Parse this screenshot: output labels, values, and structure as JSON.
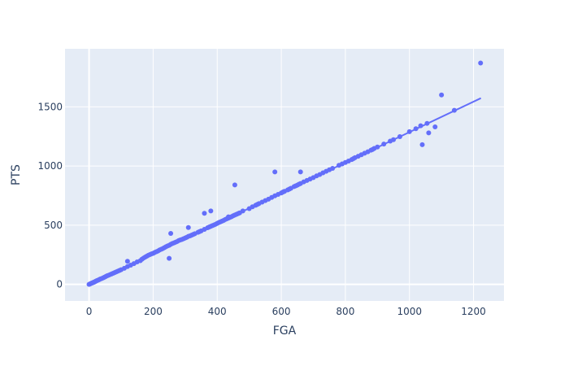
{
  "chart_data": {
    "type": "scatter",
    "title": "",
    "xlabel": "FGA",
    "ylabel": "PTS",
    "xlim": [
      -75,
      1295
    ],
    "ylim": [
      -140,
      1990
    ],
    "x_ticks": [
      0,
      200,
      400,
      600,
      800,
      1000,
      1200
    ],
    "y_ticks": [
      0,
      500,
      1000,
      1500
    ],
    "x_tick_labels": [
      "0",
      "200",
      "400",
      "600",
      "800",
      "1000",
      "1200"
    ],
    "y_tick_labels": [
      "0",
      "500",
      "1000",
      "1500"
    ],
    "grid": true,
    "legend": "none",
    "colors": {
      "plot_bg": "#e5ecf6",
      "grid": "#ffffff",
      "marker": "#636efa",
      "trendline": "#636efa",
      "text": "#2a3f5f"
    },
    "trendline": {
      "x": [
        0,
        1223
      ],
      "y": [
        0,
        1573
      ]
    },
    "series": [
      {
        "x": [
          0,
          2,
          4,
          6,
          8,
          10,
          12,
          14,
          16,
          18,
          20,
          22,
          24,
          27,
          30,
          33,
          36,
          40,
          44,
          48,
          52,
          56,
          60,
          65,
          70,
          75,
          80,
          85,
          90,
          95,
          100,
          110,
          120,
          130,
          140,
          150,
          160,
          165,
          170,
          175,
          180,
          185,
          190,
          195,
          200,
          205,
          210,
          215,
          220,
          225,
          230,
          235,
          240,
          245,
          250,
          255,
          260,
          265,
          270,
          275,
          280,
          285,
          290,
          295,
          300,
          305,
          310,
          315,
          320,
          325,
          330,
          340,
          345,
          350,
          360,
          370,
          375,
          380,
          385,
          390,
          395,
          400,
          405,
          410,
          415,
          420,
          425,
          430,
          435,
          440,
          445,
          450,
          455,
          460,
          465,
          470,
          480,
          500,
          510,
          520,
          525,
          530,
          540,
          550,
          560,
          570,
          580,
          590,
          600,
          605,
          610,
          620,
          625,
          630,
          640,
          645,
          650,
          655,
          660,
          670,
          680,
          690,
          700,
          710,
          720,
          730,
          740,
          750,
          760,
          780,
          790,
          800,
          810,
          820,
          825,
          830,
          840,
          850,
          860,
          870,
          880,
          885,
          890,
          900,
          920,
          940,
          950,
          970,
          1000,
          1020,
          1035,
          1040,
          1055,
          1060,
          1080,
          1100,
          1140,
          1222,
          360,
          455,
          255,
          380,
          435,
          580,
          660,
          250,
          310,
          120
        ],
        "y": [
          0,
          2,
          5,
          8,
          10,
          12,
          15,
          17,
          19,
          22,
          25,
          28,
          31,
          34,
          38,
          42,
          46,
          50,
          55,
          60,
          66,
          72,
          76,
          82,
          88,
          94,
          100,
          106,
          112,
          118,
          124,
          136,
          150,
          162,
          175,
          190,
          200,
          212,
          222,
          230,
          238,
          246,
          252,
          258,
          262,
          270,
          276,
          282,
          290,
          296,
          302,
          310,
          318,
          325,
          330,
          338,
          345,
          350,
          356,
          362,
          370,
          375,
          380,
          386,
          392,
          398,
          405,
          410,
          416,
          422,
          428,
          440,
          446,
          452,
          465,
          478,
          484,
          490,
          496,
          502,
          508,
          515,
          522,
          528,
          534,
          540,
          548,
          554,
          560,
          566,
          572,
          580,
          586,
          592,
          598,
          604,
          620,
          640,
          655,
          668,
          675,
          682,
          695,
          708,
          720,
          734,
          748,
          760,
          772,
          780,
          786,
          798,
          805,
          812,
          826,
          832,
          838,
          846,
          852,
          866,
          878,
          890,
          902,
          916,
          928,
          942,
          955,
          968,
          980,
          1006,
          1018,
          1030,
          1042,
          1055,
          1062,
          1070,
          1082,
          1095,
          1108,
          1120,
          1134,
          1140,
          1148,
          1160,
          1185,
          1210,
          1222,
          1248,
          1290,
          1315,
          1340,
          1180,
          1360,
          1280,
          1330,
          1600,
          1470,
          1870,
          600,
          840,
          430,
          620,
          570,
          950,
          950,
          220,
          480,
          195
        ]
      }
    ]
  }
}
